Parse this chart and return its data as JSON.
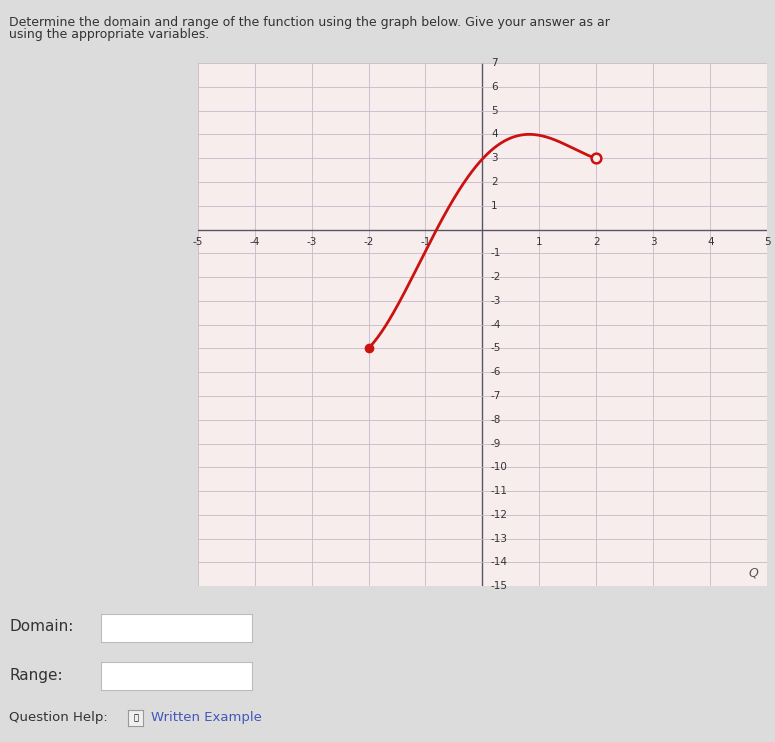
{
  "title_line1": "Determine the domain and range of the function using the graph below. Give your answer as ar",
  "title_line2": "using the appropriate variables.",
  "bg_color": "#dcdcdc",
  "graph_bg": "#f8eded",
  "grid_color_major": "#c8b8c8",
  "grid_color_minor": "#ddd0dd",
  "axis_color": "#555566",
  "curve_color": "#cc1111",
  "closed_point": [
    -2,
    -5
  ],
  "open_point": [
    2,
    3
  ],
  "x_min": -5,
  "x_max": 5,
  "y_min": -15,
  "y_max": 7,
  "x_ticks": [
    -5,
    -4,
    -3,
    -2,
    -1,
    1,
    2,
    3,
    4,
    5
  ],
  "y_ticks_pos": [
    1,
    2,
    3,
    4,
    5,
    6,
    7
  ],
  "y_ticks_neg": [
    -1,
    -2,
    -3,
    -4,
    -5,
    -6,
    -7,
    -8,
    -9,
    -10,
    -11,
    -12,
    -13,
    -14,
    -15
  ],
  "label_color": "#333333",
  "link_color": "#4455bb",
  "tick_fontsize": 7.5,
  "domain_label": "Domain:",
  "range_label": "Range:",
  "question_help_text": "Question Help:",
  "written_example_text": "Written Example"
}
